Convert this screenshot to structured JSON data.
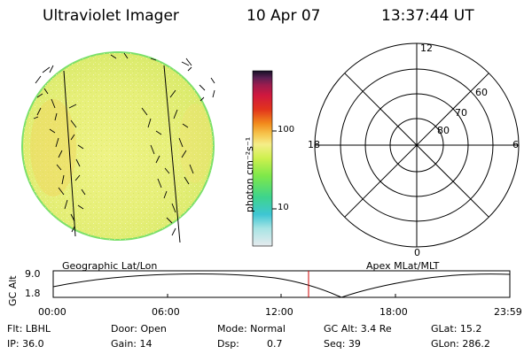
{
  "header": {
    "instrument": "Ultraviolet Imager",
    "date": "10 Apr 07",
    "time": "13:37:44 UT"
  },
  "colorbar": {
    "unit_label": "photon cm⁻²s⁻¹",
    "tick_labels": [
      "100",
      "10"
    ],
    "scale": "log",
    "colors": [
      "#dfe6ea",
      "#90e0e0",
      "#38c8d8",
      "#3fd68a",
      "#7be84a",
      "#c9f04a",
      "#f5f08a",
      "#f5c24a",
      "#f08a1e",
      "#e0331e",
      "#d01a3c",
      "#a01e4a",
      "#602050",
      "#201030"
    ]
  },
  "image_panel": {
    "label": "Geographic Lat/Lon",
    "fill_color": "#e8f07a",
    "edge_color": "#7be06a"
  },
  "polar_panel": {
    "label": "Apex MLat/MLT",
    "mlt_labels": {
      "top": "12",
      "bottom": "0",
      "left": "18",
      "right": "6"
    },
    "lat_labels": [
      "60",
      "70",
      "80"
    ]
  },
  "altitude_plot": {
    "ylabel": "GC Alt",
    "ytick_labels": [
      "9.0",
      "1.8"
    ],
    "xtick_labels": [
      "00:00",
      "06:00",
      "12:00",
      "18:00",
      "23:59"
    ],
    "marker_color": "#cc0000"
  },
  "info": {
    "flt": "Flt: LBHL",
    "door": "Door: Open",
    "mode": "Mode: Normal",
    "gc_alt": "GC Alt: 3.4 Re",
    "glat": "GLat:  15.2",
    "ip": "IP: 36.0",
    "gain": "Gain: 14",
    "dsp_label": "Dsp:",
    "dsp_value": "0.7",
    "seq": "Seq: 39",
    "glon": "GLon: 286.2"
  }
}
